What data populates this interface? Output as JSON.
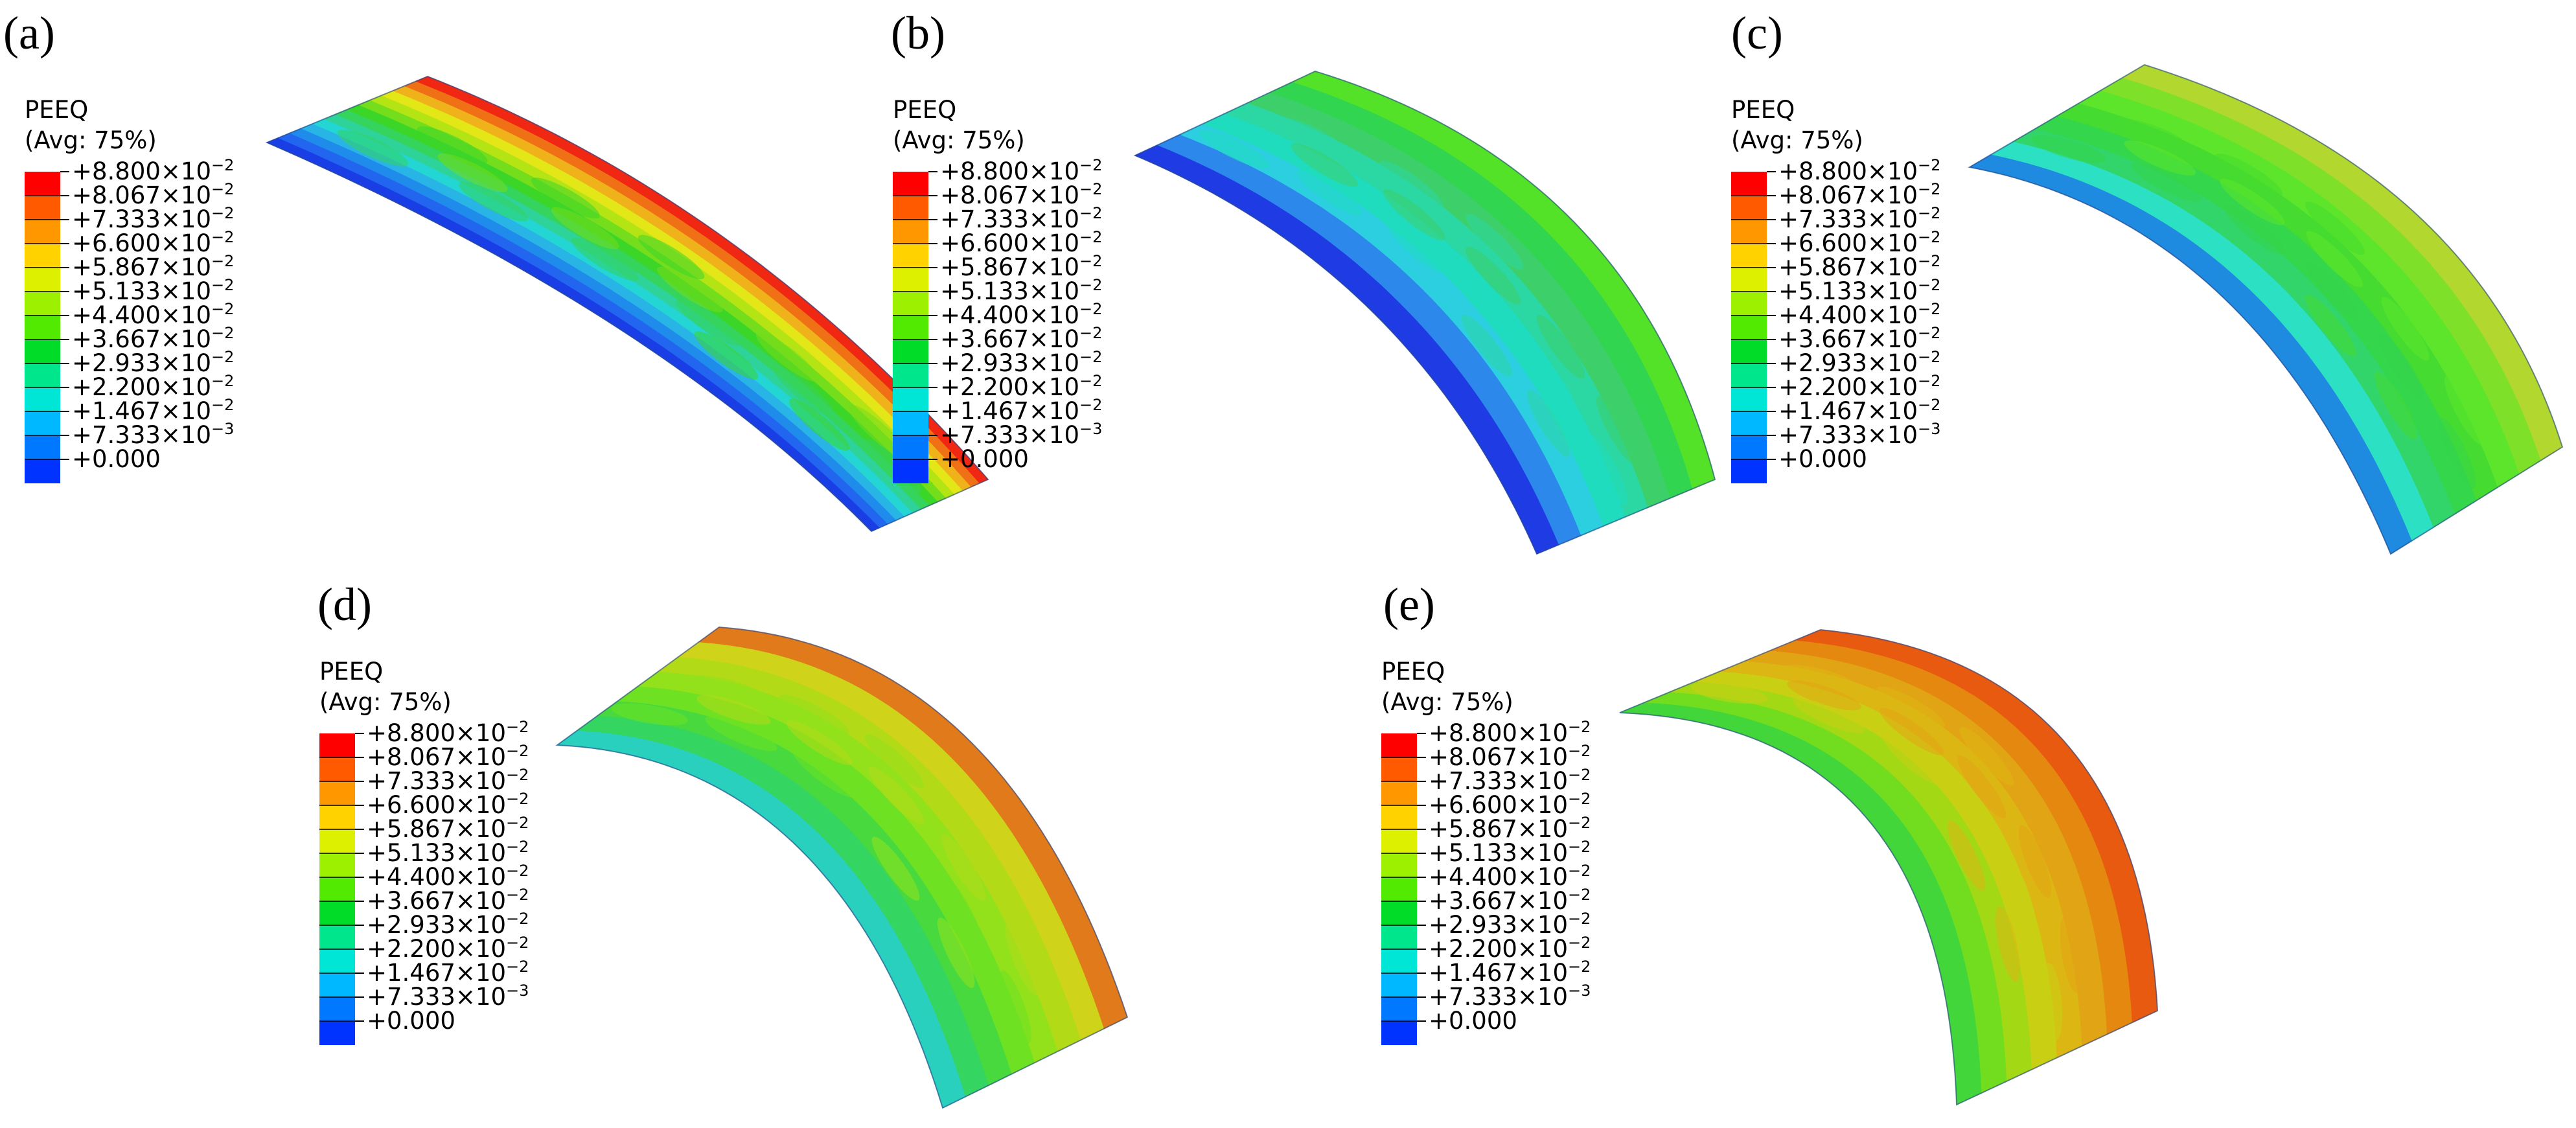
{
  "panels": [
    {
      "label": "(a)",
      "variable": "PEEQ",
      "averaging": "(Avg: 75%)",
      "band_colors": [
        "#1a3ee6",
        "#2266f0",
        "#1f8bea",
        "#29b4e6",
        "#23d6d4",
        "#2ed39a",
        "#34d45d",
        "#3cd629",
        "#74dd1c",
        "#b5e414",
        "#e3e617",
        "#f0b21a",
        "#f07015",
        "#f02712"
      ]
    },
    {
      "label": "(b)",
      "variable": "PEEQ",
      "averaging": "(Avg: 75%)",
      "band_colors": [
        "#1e3be4",
        "#2c88ea",
        "#2ccfe0",
        "#1fdcbf",
        "#2bd7a2",
        "#3dd06a",
        "#31d54f",
        "#53e227"
      ]
    },
    {
      "label": "(c)",
      "variable": "PEEQ",
      "averaging": "(Avg: 75%)",
      "band_colors": [
        "#1e8be0",
        "#2ce0c4",
        "#32d56a",
        "#34d64b",
        "#45db30",
        "#5ce52a",
        "#7ee029",
        "#b2d72e"
      ]
    },
    {
      "label": "(d)",
      "variable": "PEEQ",
      "averaging": "(Avg: 75%)",
      "band_colors": [
        "#2ad0be",
        "#34d561",
        "#47d93e",
        "#6ee123",
        "#92e11b",
        "#b3da17",
        "#cfd41a",
        "#e07a1a"
      ]
    },
    {
      "label": "(e)",
      "variable": "PEEQ",
      "averaging": "(Avg: 75%)",
      "band_colors": [
        "#42d63a",
        "#72dd1f",
        "#a3d814",
        "#c9d014",
        "#dcb713",
        "#e1a415",
        "#e5880f",
        "#e85a10"
      ]
    }
  ],
  "legend": {
    "ticks": [
      {
        "mantissa": "+8.800",
        "exponent": "−2"
      },
      {
        "mantissa": "+8.067",
        "exponent": "−2"
      },
      {
        "mantissa": "+7.333",
        "exponent": "−2"
      },
      {
        "mantissa": "+6.600",
        "exponent": "−2"
      },
      {
        "mantissa": "+5.867",
        "exponent": "−2"
      },
      {
        "mantissa": "+5.133",
        "exponent": "−2"
      },
      {
        "mantissa": "+4.400",
        "exponent": "−2"
      },
      {
        "mantissa": "+3.667",
        "exponent": "−2"
      },
      {
        "mantissa": "+2.933",
        "exponent": "−2"
      },
      {
        "mantissa": "+2.200",
        "exponent": "−2"
      },
      {
        "mantissa": "+1.467",
        "exponent": "−2"
      },
      {
        "mantissa": "+7.333",
        "exponent": "−3"
      },
      {
        "mantissa": "+0.000",
        "exponent": ""
      }
    ],
    "times_symbol": "×10",
    "colors": [
      "#ff0000",
      "#ff5a00",
      "#ff9800",
      "#ffd200",
      "#dcf000",
      "#9cf000",
      "#52ea00",
      "#00dc28",
      "#00e68c",
      "#00e6d6",
      "#00b8ff",
      "#0078ff",
      "#0033ff"
    ]
  }
}
